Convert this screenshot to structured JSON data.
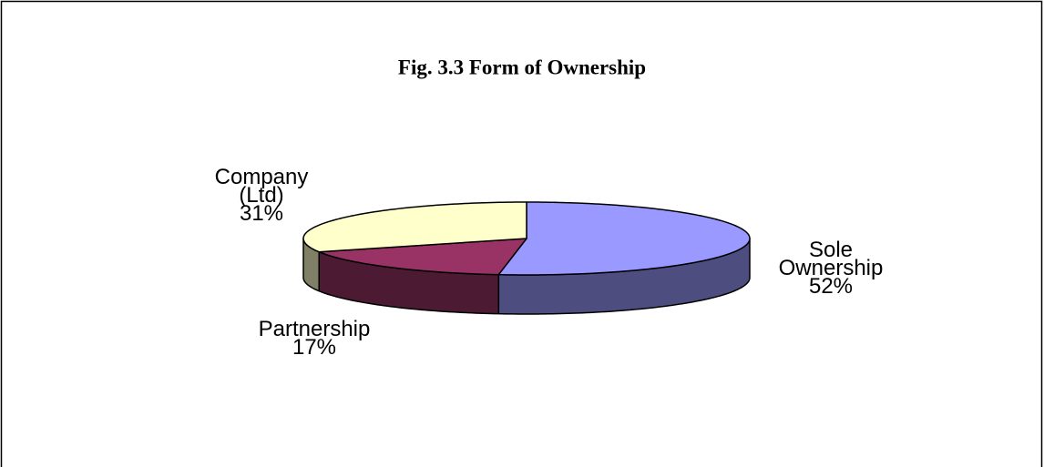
{
  "chart_data": {
    "type": "pie",
    "title": "Fig. 3.3 Form of Ownership",
    "categories": [
      "Sole Ownership",
      "Partnership",
      "Company (Ltd)"
    ],
    "values": [
      52,
      17,
      31
    ],
    "value_labels": [
      "52%",
      "17%",
      "31%"
    ],
    "colors": [
      "#9999ff",
      "#993366",
      "#ffffcc"
    ]
  }
}
